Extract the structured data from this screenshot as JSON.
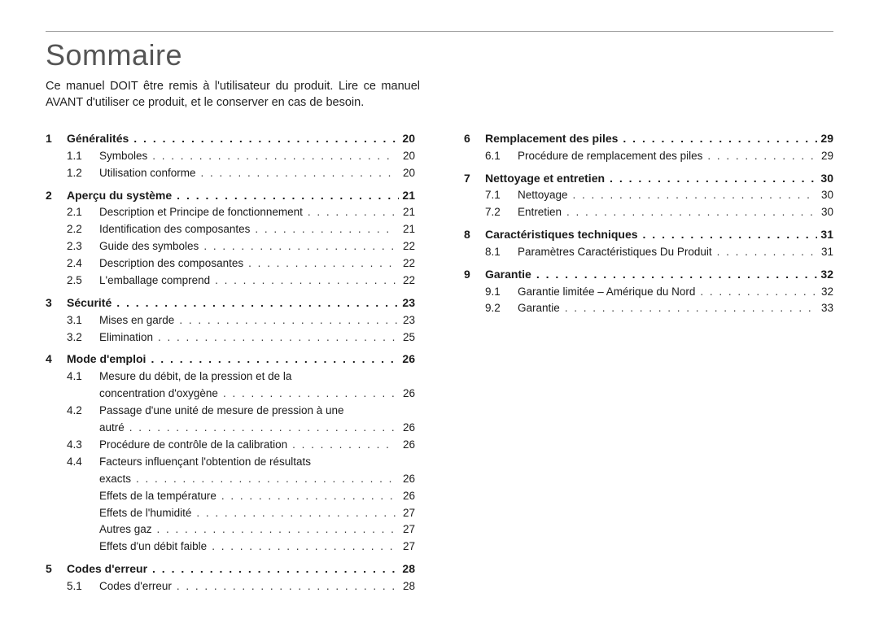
{
  "title": "Sommaire",
  "intro": "Ce manuel DOIT être remis à l'utilisateur du produit. Lire ce manuel AVANT d'utiliser ce produit, et le conserver en cas de besoin.",
  "left": [
    {
      "num": "1",
      "title": "Généralités",
      "page": "20",
      "subs": [
        {
          "num": "1.1",
          "title": "Symboles",
          "page": "20"
        },
        {
          "num": "1.2",
          "title": "Utilisation conforme",
          "page": "20"
        }
      ]
    },
    {
      "num": "2",
      "title": "Aperçu du système",
      "page": "21",
      "subs": [
        {
          "num": "2.1",
          "title": "Description et Principe de fonctionnement",
          "page": "21"
        },
        {
          "num": "2.2",
          "title": "Identification des composantes",
          "page": "21"
        },
        {
          "num": "2.3",
          "title": "Guide des symboles",
          "page": "22"
        },
        {
          "num": "2.4",
          "title": "Description des composantes",
          "page": "22"
        },
        {
          "num": "2.5",
          "title": "L'emballage comprend",
          "page": "22"
        }
      ]
    },
    {
      "num": "3",
      "title": "Sécurité",
      "page": "23",
      "subs": [
        {
          "num": "3.1",
          "title": "Mises en garde",
          "page": "23"
        },
        {
          "num": "3.2",
          "title": "Elimination",
          "page": "25"
        }
      ]
    },
    {
      "num": "4",
      "title": "Mode d'emploi",
      "page": "26",
      "subs": [
        {
          "num": "4.1",
          "title_l1": "Mesure du débit, de la pression et de la",
          "title_l2": "concentration d'oxygène",
          "page": "26",
          "multi": true
        },
        {
          "num": "4.2",
          "title_l1": "Passage d'une unité de mesure de pression à une",
          "title_l2": "autré",
          "page": "26",
          "multi": true
        },
        {
          "num": "4.3",
          "title": "Procédure de contrôle de la calibration",
          "page": "26"
        },
        {
          "num": "4.4",
          "title_l1": "Facteurs influençant l'obtention de résultats",
          "title_l2": "exacts",
          "page": "26",
          "multi": true
        },
        {
          "num": "",
          "title": "Effets de la température",
          "page": "26"
        },
        {
          "num": "",
          "title": "Effets de l'humidité",
          "page": "27"
        },
        {
          "num": "",
          "title": "Autres gaz",
          "page": "27"
        },
        {
          "num": "",
          "title": "Effets d'un débit faible",
          "page": "27"
        }
      ]
    },
    {
      "num": "5",
      "title": "Codes d'erreur",
      "page": "28",
      "subs": [
        {
          "num": "5.1",
          "title": "Codes d'erreur",
          "page": "28"
        }
      ]
    }
  ],
  "right": [
    {
      "num": "6",
      "title": "Remplacement des piles",
      "page": "29",
      "subs": [
        {
          "num": "6.1",
          "title": "Procédure de remplacement des piles",
          "page": "29"
        }
      ]
    },
    {
      "num": "7",
      "title": "Nettoyage et entretien",
      "page": "30",
      "subs": [
        {
          "num": "7.1",
          "title": "Nettoyage",
          "page": "30"
        },
        {
          "num": "7.2",
          "title": "Entretien",
          "page": "30"
        }
      ]
    },
    {
      "num": "8",
      "title": "Caractéristiques techniques",
      "page": "31",
      "subs": [
        {
          "num": "8.1",
          "title": "Paramètres Caractéristiques Du Produit",
          "page": "31"
        }
      ]
    },
    {
      "num": "9",
      "title": "Garantie",
      "page": "32",
      "subs": [
        {
          "num": "9.1",
          "title": "Garantie limitée – Amérique du Nord",
          "page": "32"
        },
        {
          "num": "9.2",
          "title": "Garantie",
          "page": "33"
        }
      ]
    }
  ]
}
